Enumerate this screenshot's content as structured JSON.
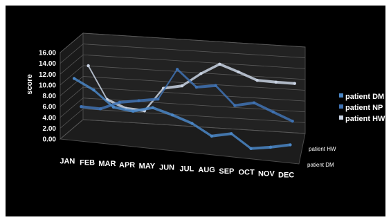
{
  "chart_data": {
    "type": "line",
    "title": "",
    "xlabel": "",
    "ylabel": "score",
    "ylim": [
      0,
      16
    ],
    "yticks": [
      "0.00",
      "2.00",
      "4.00",
      "6.00",
      "8.00",
      "10.00",
      "12.00",
      "14.00",
      "16.00"
    ],
    "categories": [
      "JAN",
      "FEB",
      "MAR",
      "APR",
      "MAY",
      "JUN",
      "JUL",
      "AUG",
      "SEP",
      "OCT",
      "NOV",
      "DEC"
    ],
    "depth_labels": [
      "patient HW",
      "patient DM"
    ],
    "series": [
      {
        "name": "patient DM",
        "values": [
          11.0,
          9.2,
          6.4,
          6.0,
          7.0,
          6.0,
          4.8,
          2.8,
          3.6,
          1.2,
          1.8,
          2.6
        ],
        "color": "#4a86c5"
      },
      {
        "name": "patient NP",
        "values": [
          4.6,
          4.5,
          6.0,
          6.6,
          7.2,
          13.0,
          10.0,
          10.6,
          7.2,
          8.0,
          6.6,
          5.2
        ],
        "color": "#3f72b3"
      },
      {
        "name": "patient HW",
        "values": [
          11.0,
          5.0,
          3.6,
          3.4,
          7.8,
          8.5,
          11.0,
          13.0,
          11.8,
          10.5,
          10.4,
          10.4
        ],
        "color": "#c8d2e2"
      }
    ],
    "grid": true,
    "legend": "right",
    "three_d": true
  }
}
